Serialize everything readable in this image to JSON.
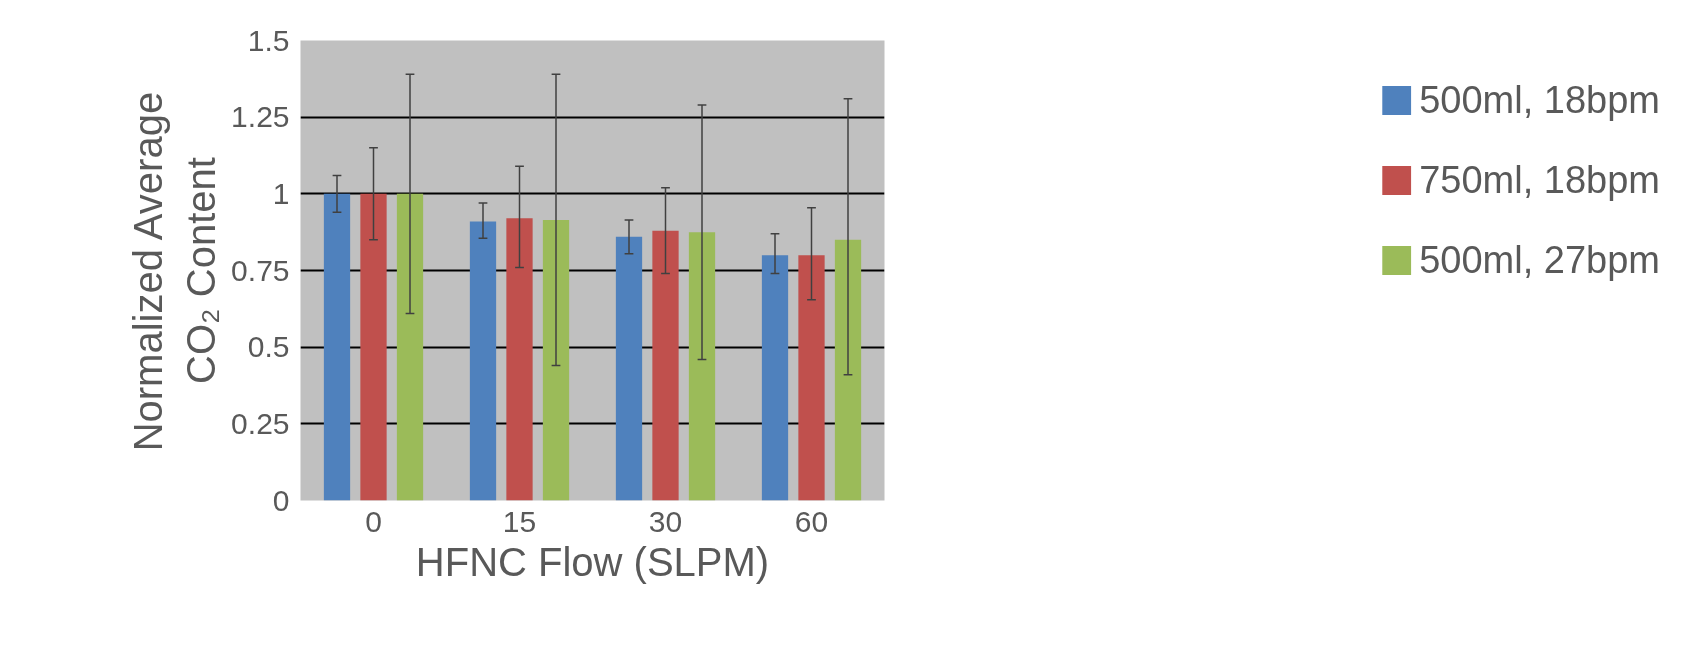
{
  "chart_data": {
    "type": "bar",
    "xlabel": "HFNC Flow (SLPM)",
    "ylabel": "Normalized Average\nCO₂ Content",
    "categories": [
      "0",
      "15",
      "30",
      "60"
    ],
    "series": [
      {
        "name": "500ml, 18bpm",
        "color": "#4f81bd",
        "values": [
          1.0,
          0.91,
          0.86,
          0.8
        ],
        "errors": [
          [
            0.94,
            1.06
          ],
          [
            0.855,
            0.97
          ],
          [
            0.805,
            0.915
          ],
          [
            0.74,
            0.87
          ]
        ]
      },
      {
        "name": "750ml, 18bpm",
        "color": "#c0504d",
        "values": [
          1.0,
          0.92,
          0.88,
          0.8
        ],
        "errors": [
          [
            0.85,
            1.15
          ],
          [
            0.76,
            1.09
          ],
          [
            0.74,
            1.02
          ],
          [
            0.655,
            0.955
          ]
        ]
      },
      {
        "name": "500ml, 27bpm",
        "color": "#9bbb59",
        "values": [
          1.0,
          0.915,
          0.875,
          0.85
        ],
        "errors": [
          [
            0.61,
            1.39
          ],
          [
            0.44,
            1.39
          ],
          [
            0.46,
            1.29
          ],
          [
            0.41,
            1.31
          ]
        ]
      }
    ],
    "ylim": [
      0,
      1.5
    ],
    "yticks": [
      0,
      0.25,
      0.5,
      0.75,
      1,
      1.25,
      1.5
    ],
    "grid": "y",
    "legend": "right"
  }
}
